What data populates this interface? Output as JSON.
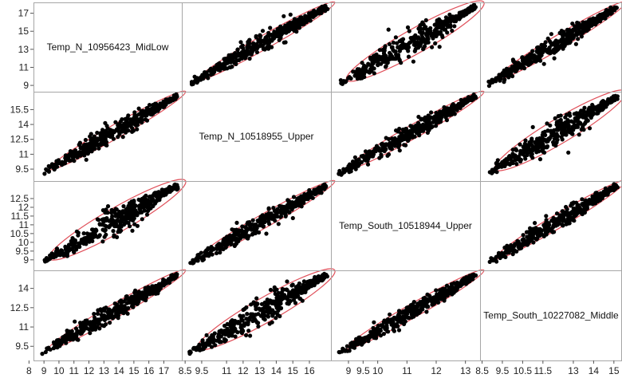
{
  "chart_data": {
    "type": "scatter",
    "subtype": "scatterplot-matrix",
    "variables": [
      "Temp_N_10956423_MidLow",
      "Temp_N_10518955_Upper",
      "Temp_South_10518944_Upper",
      "Temp_South_10227082_Middle"
    ],
    "ranges": [
      [
        8.3,
        18.2
      ],
      [
        8.3,
        17.3
      ],
      [
        8.4,
        13.5
      ],
      [
        8.4,
        15.4
      ]
    ],
    "x_tick_labels": [
      [
        "8",
        "9",
        "10",
        "11",
        "12",
        "13",
        "14",
        "15",
        "16",
        "17"
      ],
      [
        "8.5",
        "9.5",
        "11",
        "12",
        "13",
        "14",
        "15",
        "16"
      ],
      [
        "9",
        "9.5",
        "10",
        "11",
        "12",
        "13"
      ],
      [
        "8.5",
        "9.5",
        "10.5",
        "11.5",
        "13",
        "14",
        "15"
      ]
    ],
    "y_tick_labels": [
      [
        "9",
        "11",
        "13",
        "15",
        "17"
      ],
      [
        "9.5",
        "11",
        "12.5",
        "14",
        "15.5"
      ],
      [
        "9",
        "9.5",
        "10",
        "10.5",
        "11",
        "11.5",
        "12",
        "12.5"
      ],
      [
        "9.5",
        "11",
        "12.5",
        "14"
      ]
    ],
    "mark_color": "#000000",
    "ellipse_color": "#e0505a",
    "grid": false,
    "density_ellipse": true
  }
}
